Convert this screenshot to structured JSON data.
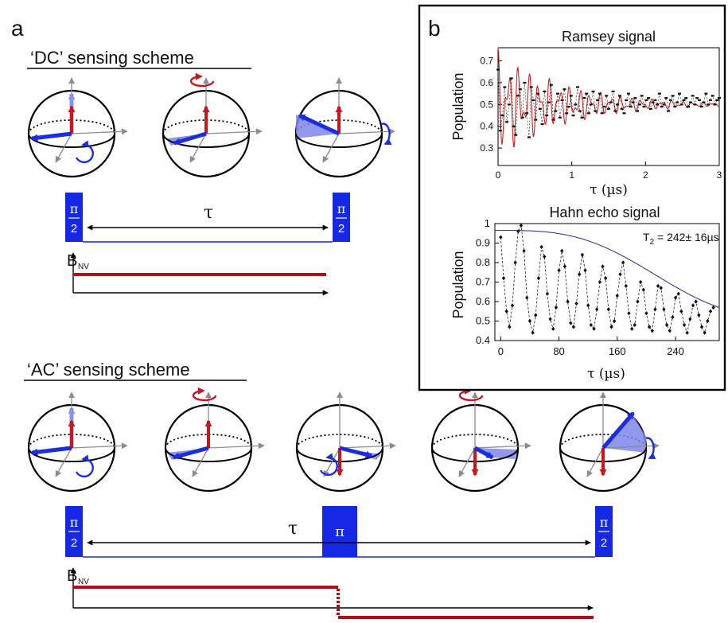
{
  "panel_a": {
    "label": "a",
    "dc": {
      "title": "‘DC’ sensing scheme",
      "pulse_left": {
        "num": "π",
        "den": "2"
      },
      "pulse_right": {
        "num": "π",
        "den": "2"
      },
      "tau": "τ",
      "field_label": "B",
      "field_sub": "NV"
    },
    "ac": {
      "title": "‘AC’ sensing scheme",
      "pulse_left": {
        "num": "π",
        "den": "2"
      },
      "pulse_mid": "π",
      "pulse_right": {
        "num": "π",
        "den": "2"
      },
      "tau": "τ",
      "field_label": "B",
      "field_sub": "NV"
    }
  },
  "panel_b": {
    "label": "b",
    "charts": [
      {
        "type": "scatter",
        "title": "Ramsey signal",
        "ylabel": "Population",
        "xlabel": "τ (µs)",
        "xlim": [
          0,
          3
        ],
        "ylim": [
          0.22,
          0.76
        ],
        "xticks": [
          0,
          1,
          2,
          3
        ],
        "yticks": [
          0.3,
          0.4,
          0.5,
          0.6,
          0.7
        ],
        "fit": {
          "type": "damped-oscillation",
          "offset": 0.5,
          "amplitude": 0.26,
          "decay_us": 0.9,
          "freq1_per_us": 7.2,
          "freq2_per_us": 11.5,
          "color": "#d62020"
        },
        "points_x": [
          0.0,
          0.03,
          0.06,
          0.09,
          0.12,
          0.15,
          0.18,
          0.21,
          0.24,
          0.27,
          0.3,
          0.33,
          0.36,
          0.39,
          0.42,
          0.45,
          0.48,
          0.51,
          0.54,
          0.57,
          0.6,
          0.63,
          0.66,
          0.69,
          0.72,
          0.75,
          0.78,
          0.81,
          0.84,
          0.87,
          0.9,
          0.93,
          0.96,
          0.99,
          1.02,
          1.05,
          1.08,
          1.11,
          1.14,
          1.17,
          1.2,
          1.23,
          1.26,
          1.29,
          1.32,
          1.35,
          1.38,
          1.41,
          1.44,
          1.47,
          1.5,
          1.53,
          1.56,
          1.59,
          1.62,
          1.65,
          1.68,
          1.71,
          1.74,
          1.77,
          1.8,
          1.83,
          1.86,
          1.89,
          1.92,
          1.95,
          1.98,
          2.01,
          2.04,
          2.07,
          2.1,
          2.13,
          2.16,
          2.19,
          2.22,
          2.25,
          2.28,
          2.31,
          2.34,
          2.37,
          2.4,
          2.43,
          2.46,
          2.49,
          2.52,
          2.55,
          2.58,
          2.61,
          2.64,
          2.67,
          2.7,
          2.73,
          2.76,
          2.79,
          2.82,
          2.85,
          2.88,
          2.91,
          2.94,
          2.97,
          3.0
        ],
        "points_y": [
          0.66,
          0.38,
          0.45,
          0.58,
          0.42,
          0.5,
          0.62,
          0.4,
          0.36,
          0.54,
          0.57,
          0.44,
          0.6,
          0.46,
          0.35,
          0.58,
          0.52,
          0.43,
          0.55,
          0.48,
          0.41,
          0.56,
          0.45,
          0.51,
          0.59,
          0.43,
          0.47,
          0.55,
          0.44,
          0.52,
          0.57,
          0.46,
          0.49,
          0.54,
          0.45,
          0.5,
          0.58,
          0.47,
          0.44,
          0.53,
          0.55,
          0.46,
          0.5,
          0.56,
          0.47,
          0.52,
          0.55,
          0.46,
          0.49,
          0.54,
          0.48,
          0.51,
          0.56,
          0.47,
          0.5,
          0.54,
          0.48,
          0.46,
          0.52,
          0.55,
          0.49,
          0.51,
          0.53,
          0.47,
          0.5,
          0.54,
          0.49,
          0.52,
          0.53,
          0.48,
          0.51,
          0.52,
          0.5,
          0.55,
          0.49,
          0.5,
          0.53,
          0.47,
          0.52,
          0.54,
          0.49,
          0.51,
          0.55,
          0.5,
          0.52,
          0.53,
          0.49,
          0.51,
          0.54,
          0.5,
          0.53,
          0.52,
          0.49,
          0.51,
          0.55,
          0.5,
          0.52,
          0.54,
          0.5,
          0.52,
          0.53
        ]
      },
      {
        "type": "scatter",
        "title": "Hahn echo signal",
        "ylabel": "Population",
        "xlabel": "τ (µs)",
        "annotation": "T",
        "annotation_sub": "2",
        "annotation_value": " = 242± 16µs",
        "xlim": [
          -8,
          300
        ],
        "ylim": [
          0.4,
          1.0
        ],
        "xticks": [
          0,
          80,
          160,
          240
        ],
        "yticks": [
          0.4,
          0.5,
          0.6,
          0.7,
          0.8,
          0.9,
          1
        ],
        "fit": {
          "type": "gaussian-decay",
          "T2_us": 242,
          "top": 0.965,
          "bottom": 0.5,
          "color": "#3a3aa0"
        },
        "points_x": [
          0,
          4,
          8,
          12,
          16,
          20,
          24,
          28,
          32,
          36,
          40,
          44,
          48,
          52,
          56,
          60,
          64,
          68,
          72,
          76,
          80,
          84,
          88,
          92,
          96,
          100,
          104,
          108,
          112,
          116,
          120,
          124,
          128,
          132,
          136,
          140,
          144,
          148,
          152,
          156,
          160,
          164,
          168,
          172,
          176,
          180,
          184,
          188,
          192,
          196,
          200,
          204,
          208,
          212,
          216,
          220,
          224,
          228,
          232,
          236,
          240,
          244,
          248,
          252,
          256,
          260,
          264,
          268,
          272,
          276,
          280,
          284,
          288,
          292
        ],
        "points_y": [
          0.93,
          0.72,
          0.55,
          0.47,
          0.58,
          0.8,
          0.96,
          0.99,
          0.86,
          0.62,
          0.5,
          0.44,
          0.53,
          0.72,
          0.88,
          0.83,
          0.64,
          0.51,
          0.46,
          0.57,
          0.76,
          0.86,
          0.78,
          0.6,
          0.49,
          0.47,
          0.59,
          0.74,
          0.84,
          0.76,
          0.58,
          0.48,
          0.46,
          0.56,
          0.7,
          0.78,
          0.72,
          0.56,
          0.47,
          0.5,
          0.63,
          0.74,
          0.8,
          0.68,
          0.54,
          0.46,
          0.48,
          0.6,
          0.7,
          0.66,
          0.54,
          0.47,
          0.45,
          0.56,
          0.68,
          0.67,
          0.56,
          0.48,
          0.45,
          0.52,
          0.62,
          0.64,
          0.55,
          0.48,
          0.44,
          0.51,
          0.58,
          0.6,
          0.53,
          0.47,
          0.44,
          0.5,
          0.55,
          0.57
        ]
      }
    ]
  },
  "colors": {
    "pulse": "#1428e6",
    "field": "#b00e16",
    "spin": "#c8161e",
    "state": "#1a2ee0",
    "state_light": "#8a93ee",
    "fill": "#7e86ea"
  }
}
